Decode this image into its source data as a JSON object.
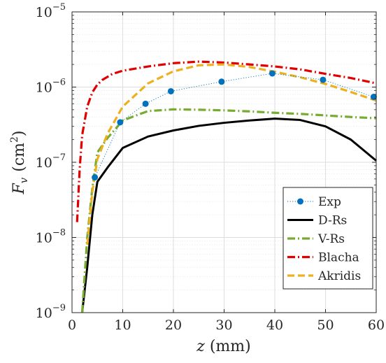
{
  "chart_data": {
    "type": "line",
    "title": "",
    "xlabel": {
      "var": "z",
      "unit": "(mm)"
    },
    "ylabel": {
      "var": "F",
      "sub": "v",
      "unit_prefix": "(cm",
      "unit_sup": "2",
      "unit_suffix": ")"
    },
    "xlim": [
      0,
      60
    ],
    "ylim": [
      1e-09,
      1e-05
    ],
    "yscale": "log",
    "grid": true,
    "legend_position": "bottom-right",
    "x_ticks": [
      {
        "value": 0,
        "label": "0"
      },
      {
        "value": 10,
        "label": "10"
      },
      {
        "value": 20,
        "label": "20"
      },
      {
        "value": 30,
        "label": "30"
      },
      {
        "value": 40,
        "label": "40"
      },
      {
        "value": 50,
        "label": "50"
      },
      {
        "value": 60,
        "label": "60"
      }
    ],
    "y_ticks": [
      {
        "value": 1e-09,
        "base": "10",
        "exp": "−9"
      },
      {
        "value": 1e-08,
        "base": "10",
        "exp": "−8"
      },
      {
        "value": 1e-07,
        "base": "10",
        "exp": "−7"
      },
      {
        "value": 1e-06,
        "base": "10",
        "exp": "−6"
      },
      {
        "value": 1e-05,
        "base": "10",
        "exp": "−5"
      }
    ],
    "series": [
      {
        "name": "Exp",
        "color": "#0072BD",
        "style": "dotted-markers",
        "x": [
          4.5,
          9.5,
          14.5,
          19.5,
          29.5,
          39.5,
          49.5,
          59.5
        ],
        "y": [
          6.3e-08,
          3.4e-07,
          6e-07,
          8.8e-07,
          1.18e-06,
          1.52e-06,
          1.25e-06,
          7.4e-07
        ]
      },
      {
        "name": "D-Rs",
        "color": "#000000",
        "style": "solid",
        "x": [
          2,
          3,
          4,
          5,
          7,
          10,
          15,
          20,
          25,
          30,
          35,
          40,
          45,
          50,
          55,
          60
        ],
        "y": [
          1e-09,
          4e-09,
          2e-08,
          5.5e-08,
          8.5e-08,
          1.55e-07,
          2.2e-07,
          2.65e-07,
          3.05e-07,
          3.35e-07,
          3.6e-07,
          3.8e-07,
          3.65e-07,
          3e-07,
          2e-07,
          1.05e-07
        ]
      },
      {
        "name": "V-Rs",
        "color": "#77AC30",
        "style": "dashdot",
        "x": [
          2,
          3,
          4,
          5,
          7,
          10,
          15,
          20,
          25,
          30,
          35,
          40,
          45,
          50,
          55,
          60
        ],
        "y": [
          1e-09,
          1e-08,
          4.5e-08,
          1.35e-07,
          2.1e-07,
          3.6e-07,
          4.8e-07,
          5.05e-07,
          5e-07,
          4.9e-07,
          4.75e-07,
          4.55e-07,
          4.4e-07,
          4.2e-07,
          4e-07,
          3.85e-07
        ]
      },
      {
        "name": "Blacha",
        "color": "#E00000",
        "style": "dashdot",
        "x": [
          1,
          1.5,
          2,
          3,
          4,
          5,
          6,
          8,
          10,
          15,
          20,
          25,
          30,
          35,
          40,
          45,
          50,
          55,
          60
        ],
        "y": [
          1.6e-08,
          8e-08,
          2.3e-07,
          5.5e-07,
          8.5e-07,
          1.08e-06,
          1.25e-06,
          1.5e-06,
          1.65e-06,
          1.88e-06,
          2.08e-06,
          2.18e-06,
          2.12e-06,
          2e-06,
          1.88e-06,
          1.72e-06,
          1.5e-06,
          1.32e-06,
          1.12e-06
        ]
      },
      {
        "name": "Akridis",
        "color": "#EDB120",
        "style": "dashed",
        "x": [
          3,
          4,
          5,
          7,
          10,
          15,
          20,
          25,
          30,
          35,
          40,
          45,
          50,
          55,
          60
        ],
        "y": [
          8e-09,
          4e-08,
          1.1e-07,
          2.4e-07,
          5.5e-07,
          1.12e-06,
          1.62e-06,
          1.95e-06,
          2e-06,
          1.85e-06,
          1.6e-06,
          1.35e-06,
          1.1e-06,
          8.6e-07,
          6.6e-07
        ]
      }
    ]
  }
}
